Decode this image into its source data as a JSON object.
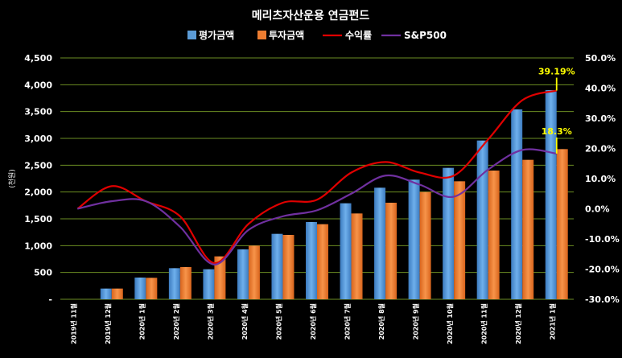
{
  "chart_data": {
    "type": "bar+line",
    "title": "메리츠자산운용 연금펀드",
    "ylabel": "(천원)",
    "categories": [
      "2019년 11월",
      "2019년 12월",
      "2020년 1월",
      "2020년 2월",
      "2020년 3월",
      "2020년 4월",
      "2020년 5월",
      "2020년 6월",
      "2020년 7월",
      "2020년 8월",
      "2020년 9월",
      "2020년 10월",
      "2020년 11월",
      "2020년 12월",
      "2021년 1월"
    ],
    "left_axis": {
      "ylim": [
        0,
        4500
      ],
      "ticks": [
        0,
        500,
        1000,
        1500,
        2000,
        2500,
        3000,
        3500,
        4000,
        4500
      ],
      "tick_labels": [
        "-",
        "500",
        "1,000",
        "1,500",
        "2,000",
        "2,500",
        "3,000",
        "3,500",
        "4,000",
        "4,500"
      ]
    },
    "right_axis": {
      "ylim": [
        -30,
        50
      ],
      "ticks": [
        -30,
        -20,
        -10,
        0,
        10,
        20,
        30,
        40,
        50
      ],
      "tick_labels": [
        "-30.0%",
        "-20.0%",
        "-10.0%",
        "0.0%",
        "10.0%",
        "20.0%",
        "30.0%",
        "40.0%",
        "50.0%"
      ]
    },
    "series": [
      {
        "name": "평가금액",
        "kind": "bar",
        "axis": "left",
        "color": "#5b9bd5",
        "values": [
          0,
          200,
          405,
          580,
          560,
          930,
          1220,
          1440,
          1790,
          2080,
          2230,
          2450,
          2960,
          3540,
          3900
        ]
      },
      {
        "name": "투자금액",
        "kind": "bar",
        "axis": "left",
        "color": "#ed7d31",
        "values": [
          0,
          200,
          400,
          600,
          800,
          1000,
          1200,
          1400,
          1600,
          1800,
          2000,
          2200,
          2400,
          2600,
          2800
        ]
      },
      {
        "name": "수익률",
        "kind": "line",
        "axis": "right",
        "color": "#e00000",
        "values": [
          0,
          7.5,
          2.5,
          -2.5,
          -18,
          -5,
          2,
          3,
          12,
          15.5,
          12,
          11,
          23,
          36,
          39.19
        ]
      },
      {
        "name": "S&P500",
        "kind": "line",
        "axis": "right",
        "color": "#7030a0",
        "values": [
          0,
          2.5,
          2.5,
          -6,
          -18.5,
          -7,
          -2.5,
          -0.5,
          5,
          11,
          8,
          4,
          13,
          19.5,
          18.3
        ]
      }
    ],
    "annotations": [
      {
        "text": "39.19%",
        "series": "수익률",
        "index": 14,
        "color": "#ffff00"
      },
      {
        "text": "18.3%",
        "series": "S&P500",
        "index": 14,
        "color": "#ffff00"
      }
    ],
    "legend": {
      "position": "top",
      "items": [
        {
          "label": "평가금액",
          "symbol": "box",
          "color": "#5b9bd5"
        },
        {
          "label": "투자금액",
          "symbol": "box",
          "color": "#ed7d31"
        },
        {
          "label": "수익률",
          "symbol": "line",
          "color": "#e00000"
        },
        {
          "label": "S&P500",
          "symbol": "line",
          "color": "#7030a0"
        }
      ]
    },
    "grid": true,
    "colors": {
      "background": "#000000",
      "grid": "#6b8e23",
      "text": "#ffffff",
      "annotation": "#ffff00"
    }
  }
}
